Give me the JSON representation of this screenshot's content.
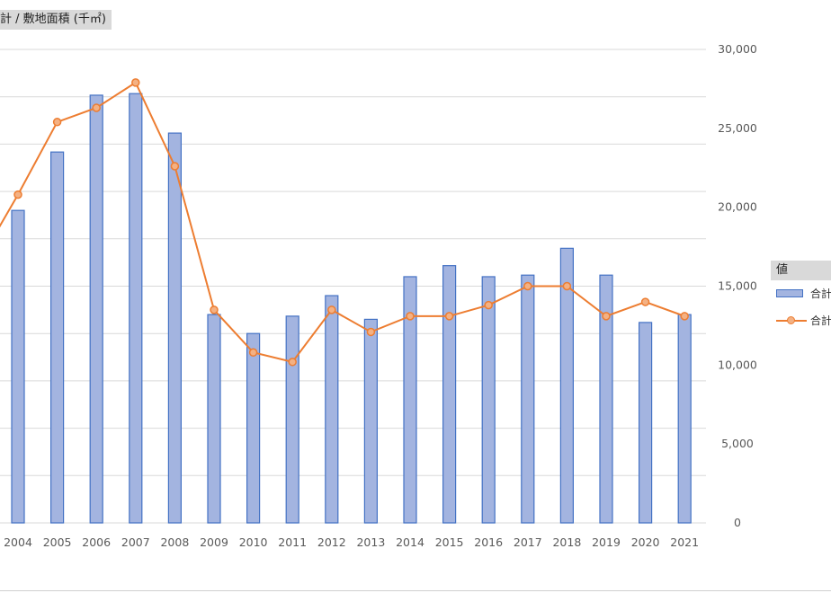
{
  "chart_title": "計 / 敷地面積 (千㎡)",
  "legend": {
    "title": "値",
    "items": [
      "合計",
      "合計"
    ]
  },
  "colors": {
    "bar_fill": "#a3b4e0",
    "bar_border": "#4472c4",
    "line": "#ed7d31",
    "marker_fill": "#f4b183",
    "grid": "#d9d9d9",
    "axis_text": "#595959"
  },
  "chart_data": {
    "type": "bar+line",
    "categories": [
      "2004",
      "2005",
      "2006",
      "2007",
      "2008",
      "2009",
      "2010",
      "2011",
      "2012",
      "2013",
      "2014",
      "2015",
      "2016",
      "2017",
      "2018",
      "2019",
      "2020",
      "2021"
    ],
    "series": [
      {
        "kind": "bar",
        "name": "合計",
        "values": [
          19800,
          23500,
          27100,
          27200,
          24700,
          13200,
          12000,
          13100,
          14400,
          12900,
          15600,
          16300,
          15600,
          15700,
          17400,
          15700,
          12700,
          13200
        ]
      },
      {
        "kind": "line",
        "name": "合計",
        "values": [
          20800,
          25400,
          26300,
          27900,
          22600,
          13500,
          10800,
          10200,
          13500,
          12100,
          13100,
          13100,
          13800,
          15000,
          15000,
          13100,
          14000,
          13100
        ]
      }
    ],
    "line_leading_value": 16500,
    "right_axis": {
      "ylim": [
        0,
        30000
      ],
      "ticks": [
        "0",
        "5,000",
        "10,000",
        "15,000",
        "20,000",
        "25,000",
        "30,000"
      ]
    },
    "grid": true,
    "legend_position": "right"
  }
}
